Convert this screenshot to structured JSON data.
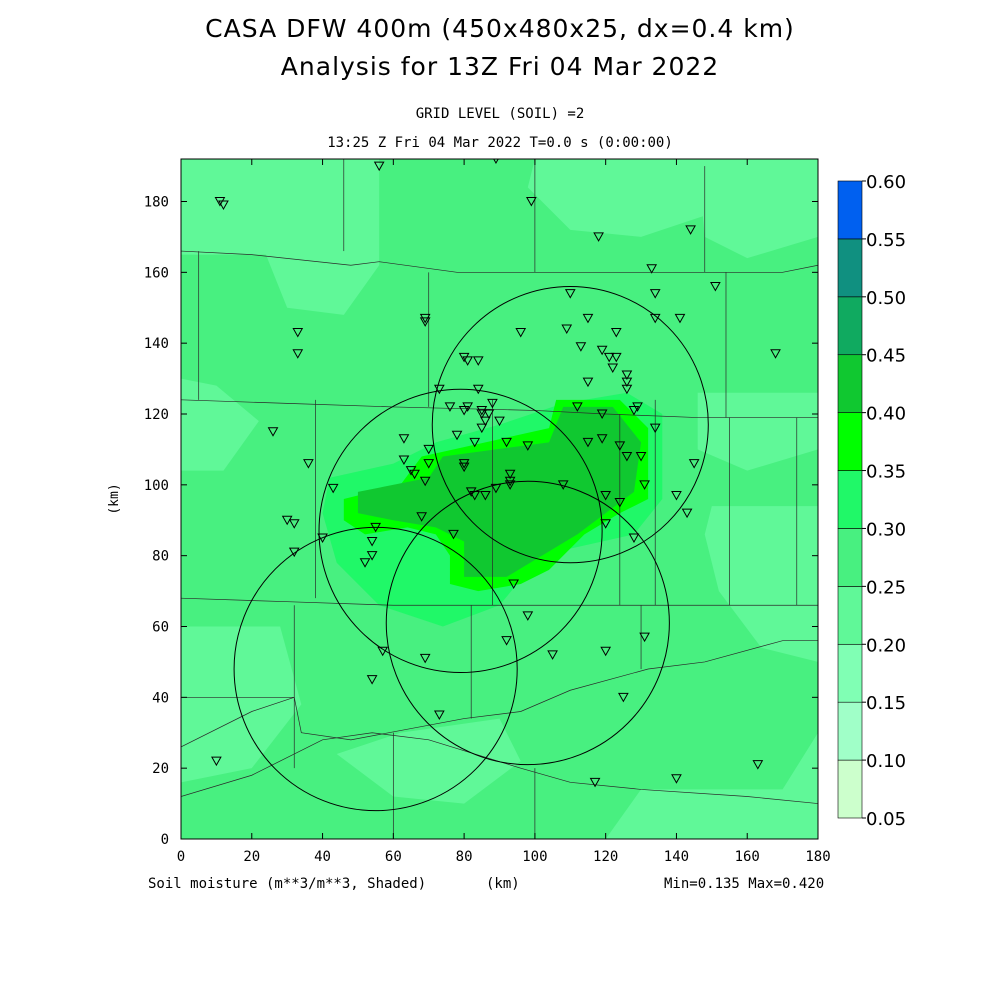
{
  "header": {
    "title_line1": "CASA DFW 400m (450x480x25, dx=0.4 km)",
    "title_line2": "Analysis for 13Z Fri 04 Mar 2022",
    "grid_level": "GRID LEVEL (SOIL) =2",
    "valid_time": "13:25 Z Fri 04 Mar 2022    T=0.0 s (0:00:00)"
  },
  "footer": {
    "field_label": "Soil moisture (m**3/m**3, Shaded)",
    "x_unit": "(km)",
    "minmax": "Min=0.135 Max=0.420"
  },
  "chart_data": {
    "type": "heatmap",
    "xlabel": "(km)",
    "ylabel": "(km)",
    "xlim": [
      0,
      180
    ],
    "ylim": [
      0,
      192
    ],
    "x_ticks": [
      0,
      20,
      40,
      60,
      80,
      100,
      120,
      140,
      160,
      180
    ],
    "y_ticks": [
      0,
      20,
      40,
      60,
      80,
      100,
      120,
      140,
      160,
      180
    ],
    "colorbar": {
      "levels": [
        0.05,
        0.1,
        0.15,
        0.2,
        0.25,
        0.3,
        0.35,
        0.4,
        0.45,
        0.5,
        0.55,
        0.6
      ],
      "labels": [
        "0.05",
        "0.10",
        "0.15",
        "0.20",
        "0.25",
        "0.30",
        "0.35",
        "0.40",
        "0.45",
        "0.50",
        "0.55",
        "0.60"
      ],
      "colors": [
        "#ccffcc",
        "#a0ffc8",
        "#80ffb4",
        "#60f898",
        "#48f080",
        "#20f868",
        "#00ff00",
        "#10c830",
        "#10aa60",
        "#109080",
        "#0060f0"
      ]
    },
    "base_value": 0.25,
    "regions": [
      {
        "value": 0.3,
        "polygon": [
          [
            42,
            102
          ],
          [
            60,
            106
          ],
          [
            72,
            112
          ],
          [
            90,
            117
          ],
          [
            108,
            123
          ],
          [
            126,
            126
          ],
          [
            136,
            120
          ],
          [
            136,
            96
          ],
          [
            128,
            86
          ],
          [
            110,
            82
          ],
          [
            100,
            78
          ],
          [
            90,
            66
          ],
          [
            74,
            60
          ],
          [
            56,
            66
          ],
          [
            44,
            78
          ],
          [
            40,
            92
          ]
        ]
      },
      {
        "value": 0.35,
        "polygon": [
          [
            46,
            96
          ],
          [
            62,
            100
          ],
          [
            68,
            108
          ],
          [
            104,
            116
          ],
          [
            106,
            124
          ],
          [
            124,
            124
          ],
          [
            132,
            116
          ],
          [
            132,
            96
          ],
          [
            124,
            92
          ],
          [
            114,
            86
          ],
          [
            104,
            76
          ],
          [
            96,
            72
          ],
          [
            84,
            70
          ],
          [
            76,
            72
          ],
          [
            76,
            80
          ],
          [
            72,
            86
          ],
          [
            64,
            88
          ],
          [
            52,
            86
          ],
          [
            46,
            90
          ]
        ]
      },
      {
        "value": 0.4,
        "polygon": [
          [
            50,
            98
          ],
          [
            70,
            102
          ],
          [
            74,
            108
          ],
          [
            104,
            112
          ],
          [
            108,
            122
          ],
          [
            122,
            122
          ],
          [
            130,
            112
          ],
          [
            128,
            98
          ],
          [
            120,
            92
          ],
          [
            112,
            86
          ],
          [
            102,
            80
          ],
          [
            92,
            74
          ],
          [
            80,
            74
          ],
          [
            80,
            84
          ],
          [
            72,
            88
          ],
          [
            60,
            90
          ],
          [
            50,
            92
          ]
        ]
      },
      {
        "value": 0.2,
        "polygon": [
          [
            0,
            165
          ],
          [
            24,
            165
          ],
          [
            30,
            150
          ],
          [
            46,
            148
          ],
          [
            56,
            162
          ],
          [
            56,
            192
          ],
          [
            0,
            192
          ]
        ]
      },
      {
        "value": 0.2,
        "polygon": [
          [
            0,
            130
          ],
          [
            10,
            128
          ],
          [
            22,
            118
          ],
          [
            12,
            104
          ],
          [
            0,
            104
          ]
        ]
      },
      {
        "value": 0.2,
        "polygon": [
          [
            100,
            192
          ],
          [
            150,
            192
          ],
          [
            148,
            176
          ],
          [
            130,
            170
          ],
          [
            110,
            172
          ],
          [
            98,
            184
          ]
        ]
      },
      {
        "value": 0.2,
        "polygon": [
          [
            146,
            192
          ],
          [
            180,
            192
          ],
          [
            180,
            170
          ],
          [
            160,
            164
          ],
          [
            148,
            170
          ]
        ]
      },
      {
        "value": 0.2,
        "polygon": [
          [
            146,
            126
          ],
          [
            180,
            126
          ],
          [
            180,
            110
          ],
          [
            160,
            104
          ],
          [
            146,
            110
          ]
        ]
      },
      {
        "value": 0.2,
        "polygon": [
          [
            150,
            94
          ],
          [
            180,
            94
          ],
          [
            180,
            50
          ],
          [
            164,
            54
          ],
          [
            152,
            70
          ],
          [
            148,
            86
          ]
        ]
      },
      {
        "value": 0.2,
        "polygon": [
          [
            0,
            60
          ],
          [
            28,
            60
          ],
          [
            34,
            38
          ],
          [
            20,
            20
          ],
          [
            0,
            16
          ]
        ]
      },
      {
        "value": 0.2,
        "polygon": [
          [
            44,
            24
          ],
          [
            62,
            30
          ],
          [
            90,
            34
          ],
          [
            96,
            22
          ],
          [
            80,
            10
          ],
          [
            60,
            12
          ]
        ]
      },
      {
        "value": 0.2,
        "polygon": [
          [
            130,
            14
          ],
          [
            170,
            14
          ],
          [
            180,
            30
          ],
          [
            180,
            0
          ],
          [
            120,
            0
          ]
        ]
      }
    ],
    "radar_circles": [
      {
        "center": [
          110,
          117
        ],
        "radius": 39
      },
      {
        "center": [
          79,
          87
        ],
        "radius": 40
      },
      {
        "center": [
          98,
          61
        ],
        "radius": 40
      },
      {
        "center": [
          55,
          48
        ],
        "radius": 40
      }
    ],
    "stations": [
      [
        11,
        180
      ],
      [
        12,
        179
      ],
      [
        56,
        190
      ],
      [
        89,
        192
      ],
      [
        99,
        180
      ],
      [
        118,
        170
      ],
      [
        144,
        172
      ],
      [
        133,
        161
      ],
      [
        134,
        154
      ],
      [
        151,
        156
      ],
      [
        110,
        154
      ],
      [
        115,
        147
      ],
      [
        109,
        144
      ],
      [
        123,
        143
      ],
      [
        134,
        147
      ],
      [
        141,
        147
      ],
      [
        69,
        147
      ],
      [
        69,
        146
      ],
      [
        33,
        143
      ],
      [
        33,
        137
      ],
      [
        96,
        143
      ],
      [
        113,
        139
      ],
      [
        119,
        138
      ],
      [
        121,
        136
      ],
      [
        123,
        136
      ],
      [
        122,
        133
      ],
      [
        126,
        131
      ],
      [
        126,
        129
      ],
      [
        126,
        127
      ],
      [
        115,
        129
      ],
      [
        168,
        137
      ],
      [
        80,
        136
      ],
      [
        81,
        135
      ],
      [
        84,
        135
      ],
      [
        73,
        127
      ],
      [
        84,
        127
      ],
      [
        88,
        123
      ],
      [
        76,
        122
      ],
      [
        80,
        121
      ],
      [
        81,
        122
      ],
      [
        85,
        121
      ],
      [
        85,
        120
      ],
      [
        87,
        120
      ],
      [
        86,
        118
      ],
      [
        90,
        118
      ],
      [
        112,
        122
      ],
      [
        119,
        120
      ],
      [
        128,
        121
      ],
      [
        129,
        122
      ],
      [
        134,
        116
      ],
      [
        26,
        115
      ],
      [
        85,
        116
      ],
      [
        83,
        112
      ],
      [
        78,
        114
      ],
      [
        63,
        113
      ],
      [
        119,
        113
      ],
      [
        115,
        112
      ],
      [
        124,
        111
      ],
      [
        126,
        108
      ],
      [
        130,
        108
      ],
      [
        92,
        112
      ],
      [
        98,
        111
      ],
      [
        70,
        110
      ],
      [
        63,
        107
      ],
      [
        70,
        106
      ],
      [
        36,
        106
      ],
      [
        80,
        106
      ],
      [
        80,
        105
      ],
      [
        65,
        104
      ],
      [
        66,
        103
      ],
      [
        69,
        101
      ],
      [
        93,
        103
      ],
      [
        93,
        101
      ],
      [
        93,
        100
      ],
      [
        108,
        100
      ],
      [
        131,
        100
      ],
      [
        145,
        106
      ],
      [
        43,
        99
      ],
      [
        82,
        98
      ],
      [
        83,
        97
      ],
      [
        89,
        99
      ],
      [
        86,
        97
      ],
      [
        120,
        97
      ],
      [
        124,
        95
      ],
      [
        140,
        97
      ],
      [
        143,
        92
      ],
      [
        30,
        90
      ],
      [
        32,
        89
      ],
      [
        68,
        91
      ],
      [
        55,
        88
      ],
      [
        120,
        89
      ],
      [
        128,
        85
      ],
      [
        54,
        84
      ],
      [
        77,
        86
      ],
      [
        54,
        80
      ],
      [
        52,
        78
      ],
      [
        32,
        81
      ],
      [
        40,
        85
      ],
      [
        94,
        72
      ],
      [
        98,
        63
      ],
      [
        92,
        56
      ],
      [
        105,
        52
      ],
      [
        120,
        53
      ],
      [
        131,
        57
      ],
      [
        57,
        53
      ],
      [
        69,
        51
      ],
      [
        54,
        45
      ],
      [
        73,
        35
      ],
      [
        125,
        40
      ],
      [
        10,
        22
      ],
      [
        117,
        16
      ],
      [
        140,
        17
      ],
      [
        163,
        21
      ]
    ],
    "county_lines": [
      [
        [
          0,
          166
        ],
        [
          20,
          165
        ],
        [
          48,
          162
        ],
        [
          56,
          163
        ],
        [
          78,
          160
        ],
        [
          100,
          160
        ],
        [
          130,
          160
        ],
        [
          150,
          160
        ],
        [
          170,
          160
        ],
        [
          180,
          162
        ]
      ],
      [
        [
          0,
          124
        ],
        [
          30,
          123
        ],
        [
          60,
          122
        ],
        [
          100,
          121
        ],
        [
          120,
          120
        ],
        [
          146,
          119
        ],
        [
          180,
          119
        ]
      ],
      [
        [
          0,
          68
        ],
        [
          30,
          67
        ],
        [
          60,
          66
        ],
        [
          100,
          66
        ],
        [
          130,
          66
        ],
        [
          156,
          66
        ],
        [
          180,
          66
        ]
      ],
      [
        [
          0,
          40
        ],
        [
          14,
          40
        ],
        [
          32,
          40
        ],
        [
          34,
          30
        ],
        [
          48,
          28
        ],
        [
          80,
          34
        ],
        [
          96,
          36
        ],
        [
          110,
          42
        ],
        [
          132,
          48
        ],
        [
          148,
          50
        ],
        [
          170,
          56
        ],
        [
          180,
          56
        ]
      ],
      [
        [
          0,
          12
        ],
        [
          20,
          18
        ],
        [
          40,
          28
        ],
        [
          54,
          30
        ],
        [
          70,
          28
        ],
        [
          96,
          20
        ],
        [
          110,
          16
        ],
        [
          130,
          14
        ],
        [
          160,
          12
        ],
        [
          180,
          10
        ]
      ],
      [
        [
          46,
          192
        ],
        [
          46,
          166
        ]
      ],
      [
        [
          100,
          160
        ],
        [
          100,
          192
        ]
      ],
      [
        [
          148,
          160
        ],
        [
          148,
          190
        ]
      ],
      [
        [
          5,
          124
        ],
        [
          5,
          166
        ]
      ],
      [
        [
          38,
          124
        ],
        [
          38,
          68
        ]
      ],
      [
        [
          88,
          124
        ],
        [
          88,
          66
        ]
      ],
      [
        [
          124,
          120
        ],
        [
          124,
          66
        ]
      ],
      [
        [
          134,
          124
        ],
        [
          134,
          66
        ]
      ],
      [
        [
          155,
          119
        ],
        [
          155,
          66
        ]
      ],
      [
        [
          174,
          119
        ],
        [
          174,
          66
        ]
      ],
      [
        [
          32,
          66
        ],
        [
          32,
          20
        ]
      ],
      [
        [
          82,
          66
        ],
        [
          82,
          34
        ]
      ],
      [
        [
          130,
          66
        ],
        [
          130,
          48
        ]
      ],
      [
        [
          100,
          20
        ],
        [
          100,
          0
        ]
      ],
      [
        [
          60,
          0
        ],
        [
          60,
          30
        ]
      ],
      [
        [
          154,
          160
        ],
        [
          154,
          119
        ]
      ],
      [
        [
          70,
          122
        ],
        [
          70,
          160
        ]
      ],
      [
        [
          0,
          26
        ],
        [
          20,
          36
        ],
        [
          32,
          40
        ]
      ]
    ]
  }
}
